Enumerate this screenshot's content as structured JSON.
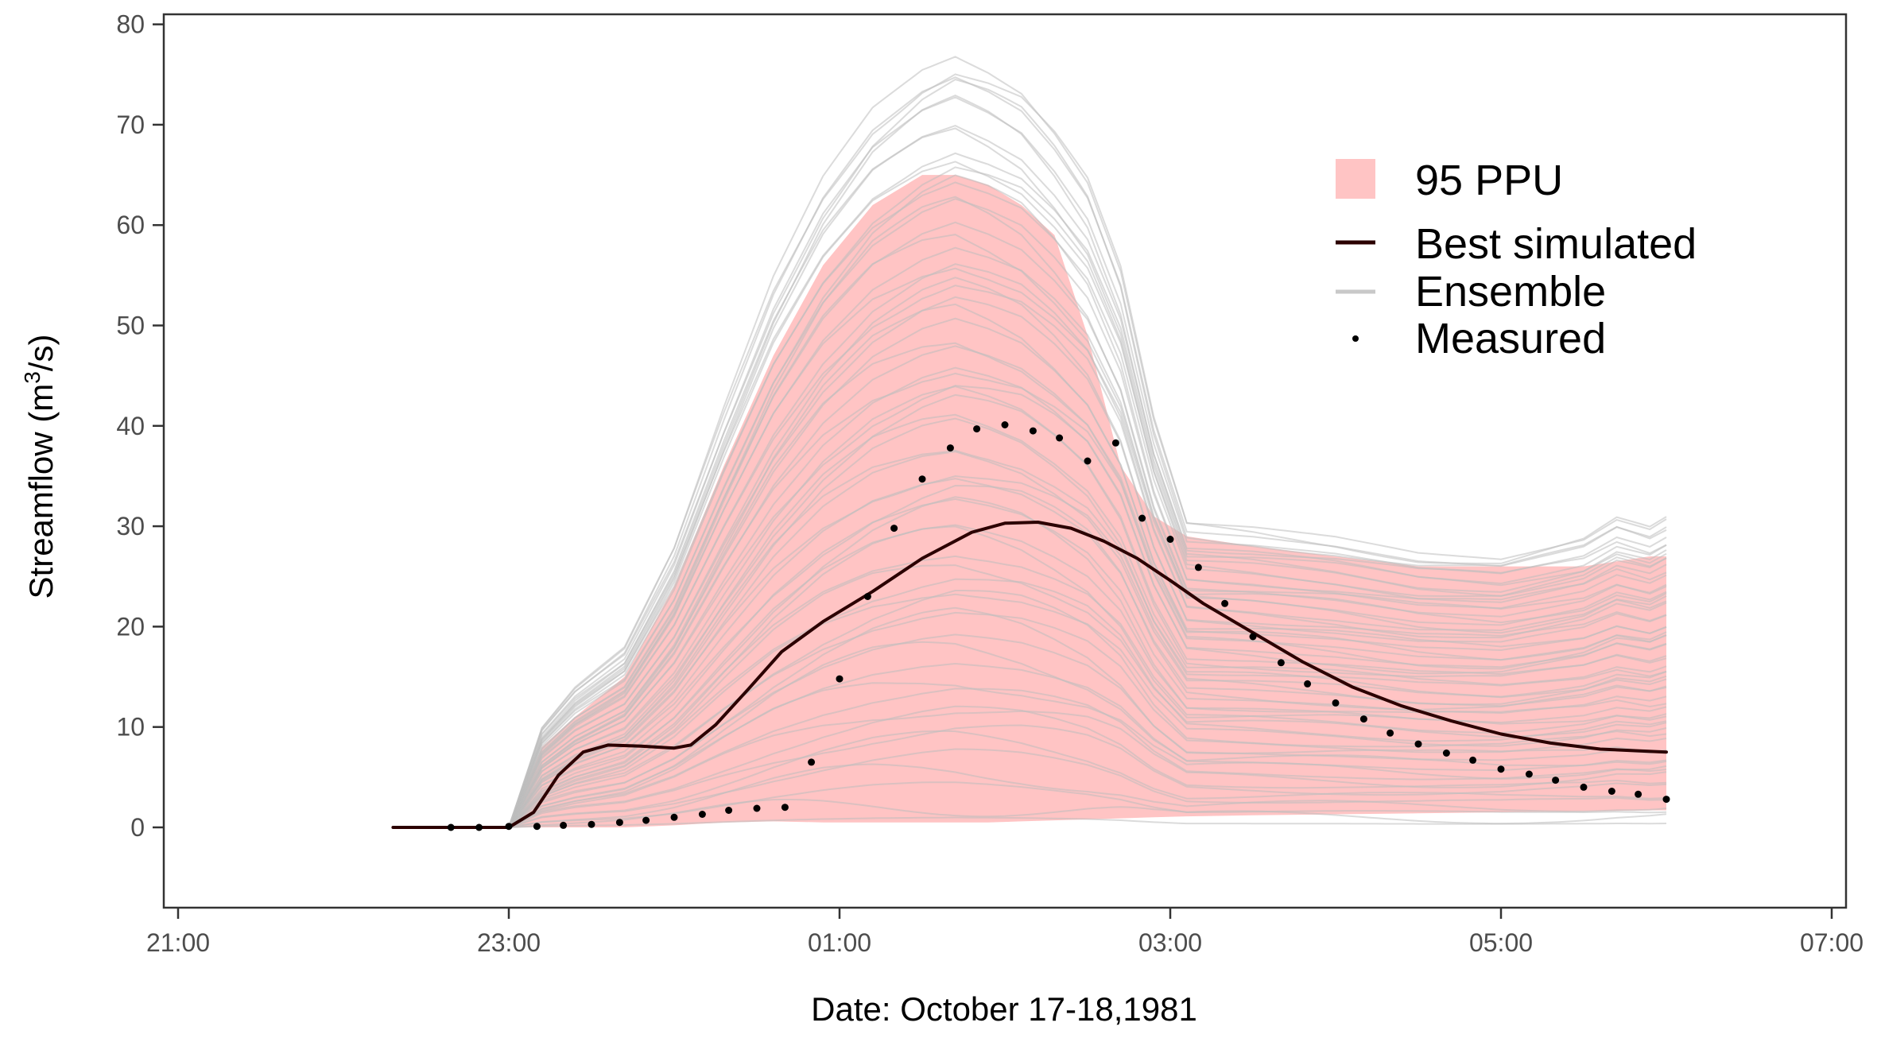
{
  "chart_data": {
    "type": "line",
    "title": "",
    "xlabel": "Date: October 17-18,1981",
    "ylabel_main": "Streamflow (m",
    "ylabel_sup": "3",
    "ylabel_tail": "/s)",
    "xlim": [
      -3,
      7
    ],
    "ylim": [
      -8,
      81
    ],
    "x_ticks": [
      {
        "value": -3,
        "label": "21:00"
      },
      {
        "value": -1,
        "label": "23:00"
      },
      {
        "value": 1,
        "label": "01:00"
      },
      {
        "value": 3,
        "label": "03:00"
      },
      {
        "value": 5,
        "label": "05:00"
      },
      {
        "value": 7,
        "label": "07:00"
      }
    ],
    "y_ticks": [
      {
        "value": 0,
        "label": "0"
      },
      {
        "value": 10,
        "label": "10"
      },
      {
        "value": 20,
        "label": "20"
      },
      {
        "value": 30,
        "label": "30"
      },
      {
        "value": 40,
        "label": "40"
      },
      {
        "value": 50,
        "label": "50"
      },
      {
        "value": 60,
        "label": "60"
      },
      {
        "value": 70,
        "label": "70"
      },
      {
        "value": 80,
        "label": "80"
      }
    ],
    "legend": {
      "position": "top-right",
      "items": [
        {
          "key": "ppu",
          "label": "95 PPU",
          "color": "#ffc4c4"
        },
        {
          "key": "best",
          "label": "Best simulated",
          "color": "#2b0000"
        },
        {
          "key": "ensemble",
          "label": "Ensemble",
          "color": "#c8c8c8"
        },
        {
          "key": "measured",
          "label": "Measured",
          "color": "#000000"
        }
      ]
    },
    "colors": {
      "ppu_fill": "#ffc4c4",
      "ensemble": "#bdbdbd",
      "best": "#2b0000",
      "measured": "#000000",
      "frame": "#333333"
    },
    "ppu_band": {
      "x": [
        -1.7,
        -1.0,
        -0.8,
        -0.6,
        -0.3,
        0.0,
        0.3,
        0.6,
        0.9,
        1.2,
        1.5,
        1.7,
        1.9,
        2.1,
        2.3,
        2.5,
        2.7,
        2.9,
        3.1,
        3.5,
        4.0,
        4.5,
        5.0,
        5.5,
        5.9,
        6.0
      ],
      "upper": [
        0,
        0,
        8,
        11,
        15,
        24,
        36,
        47,
        56,
        62,
        65,
        65,
        64,
        62,
        59,
        49,
        36,
        31,
        29,
        28,
        27,
        26,
        26,
        26,
        27,
        27
      ],
      "lower": [
        0,
        0,
        0,
        0,
        0,
        0.2,
        0.5,
        0.6,
        0.5,
        0.5,
        0.5,
        0.5,
        0.5,
        0.6,
        0.7,
        0.8,
        0.9,
        1.0,
        1.1,
        1.2,
        1.3,
        1.4,
        1.5,
        1.6,
        1.7,
        1.7
      ]
    },
    "ensemble_envelope": {
      "x": [
        -1.7,
        -1.0,
        -0.8,
        -0.6,
        -0.3,
        0.0,
        0.3,
        0.6,
        0.9,
        1.2,
        1.5,
        1.7,
        1.9,
        2.1,
        2.3,
        2.5,
        2.7,
        2.9,
        3.1,
        3.5,
        4.0,
        4.5,
        5.0,
        5.5,
        5.7,
        5.9,
        6.0
      ],
      "high": [
        0,
        0,
        10,
        14,
        18,
        28,
        42,
        55,
        65,
        72,
        76,
        77.5,
        76,
        74,
        70,
        65,
        56,
        41,
        30.5,
        30,
        29,
        27.5,
        27,
        29,
        31,
        30,
        31
      ],
      "low": [
        0,
        0,
        0,
        0,
        0,
        0,
        0,
        0,
        0,
        0,
        0,
        0,
        0,
        0,
        0,
        0,
        0,
        0,
        0,
        0,
        0,
        0,
        0,
        0,
        0,
        0,
        0
      ]
    },
    "series": [
      {
        "name": "Best simulated",
        "x": [
          -1.7,
          -1.3,
          -1.0,
          -0.85,
          -0.7,
          -0.55,
          -0.4,
          -0.2,
          0.0,
          0.1,
          0.25,
          0.45,
          0.65,
          0.9,
          1.2,
          1.5,
          1.8,
          2.0,
          2.2,
          2.4,
          2.6,
          2.8,
          3.0,
          3.2,
          3.5,
          3.8,
          4.1,
          4.4,
          4.7,
          5.0,
          5.3,
          5.6,
          6.0
        ],
        "y": [
          0,
          0,
          0,
          1.5,
          5.2,
          7.5,
          8.2,
          8.1,
          7.9,
          8.2,
          10.2,
          13.8,
          17.5,
          20.5,
          23.5,
          26.8,
          29.4,
          30.3,
          30.4,
          29.8,
          28.5,
          26.8,
          24.6,
          22.3,
          19.4,
          16.5,
          14.0,
          12.1,
          10.6,
          9.3,
          8.4,
          7.8,
          7.5
        ]
      },
      {
        "name": "Measured",
        "x": [
          -1.35,
          -1.18,
          -1.0,
          -0.83,
          -0.67,
          -0.5,
          -0.33,
          -0.17,
          0.0,
          0.17,
          0.33,
          0.5,
          0.67,
          0.83,
          1.0,
          1.17,
          1.33,
          1.5,
          1.67,
          1.83,
          2.0,
          2.17,
          2.33,
          2.5,
          2.67,
          2.83,
          3.0,
          3.17,
          3.33,
          3.5,
          3.67,
          3.83,
          4.0,
          4.17,
          4.33,
          4.5,
          4.67,
          4.83,
          5.0,
          5.17,
          5.33,
          5.5,
          5.67,
          5.83,
          6.0
        ],
        "y": [
          0,
          0,
          0.1,
          0.1,
          0.2,
          0.3,
          0.5,
          0.7,
          1.0,
          1.3,
          1.7,
          1.9,
          2.0,
          6.5,
          14.8,
          23.0,
          29.8,
          34.7,
          37.8,
          39.7,
          40.1,
          39.5,
          38.8,
          36.5,
          38.3,
          30.8,
          28.7,
          25.9,
          22.3,
          19.0,
          16.4,
          14.3,
          12.4,
          10.8,
          9.4,
          8.3,
          7.4,
          6.7,
          5.8,
          5.3,
          4.7,
          4.0,
          3.6,
          3.3,
          2.8
        ]
      }
    ]
  }
}
